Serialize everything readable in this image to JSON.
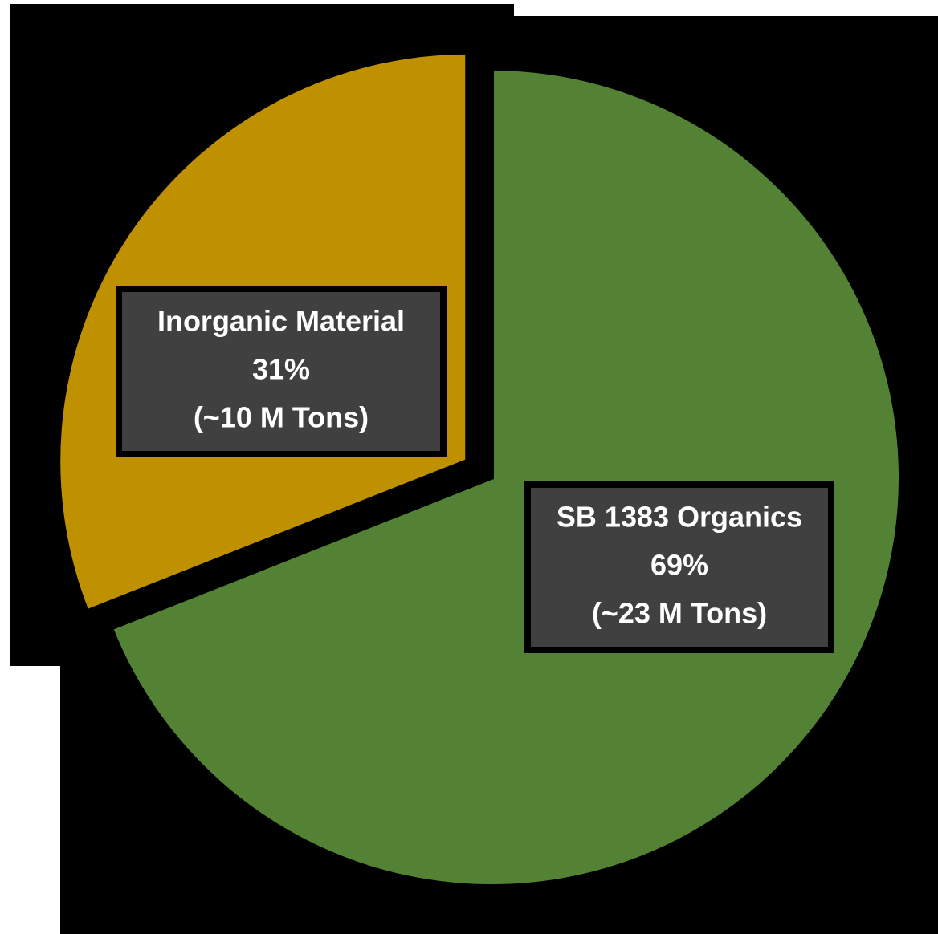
{
  "chart_data": {
    "type": "pie",
    "categories": [
      "SB 1383 Organics",
      "Inorganic Material"
    ],
    "values": [
      69,
      31
    ],
    "value_labels": [
      "69%",
      "31%"
    ],
    "annotations": [
      "(~23 M Tons)",
      "(~10 M Tons)"
    ],
    "colors": [
      "#548235",
      "#bf9000"
    ],
    "exploded": [
      false,
      true
    ]
  }
}
